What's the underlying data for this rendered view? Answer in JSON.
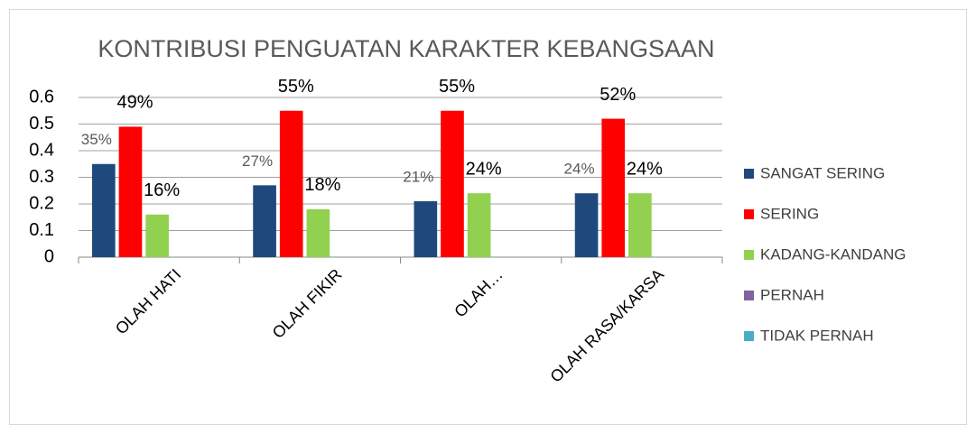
{
  "chart_data": {
    "type": "bar",
    "title": "KONTRIBUSI PENGUATAN KARAKTER KEBANGSAAN",
    "categories": [
      "OLAH HATI",
      "OLAH FIKIR",
      "OLAH…",
      "OLAH RASA/KARSA"
    ],
    "series": [
      {
        "name": "SANGAT SERING",
        "color": "#1f497d",
        "values": [
          0.35,
          0.27,
          0.21,
          0.24
        ],
        "value_labels": [
          "35%",
          "27%",
          "21%",
          "24%"
        ]
      },
      {
        "name": "SERING",
        "color": "#ff0000",
        "values": [
          0.49,
          0.55,
          0.55,
          0.52
        ],
        "value_labels": [
          "49%",
          "55%",
          "55%",
          "52%"
        ]
      },
      {
        "name": "KADANG-KANDANG",
        "color": "#92d050",
        "values": [
          0.16,
          0.18,
          0.24,
          0.24
        ],
        "value_labels": [
          "16%",
          "18%",
          "24%",
          "24%"
        ]
      },
      {
        "name": "PERNAH",
        "color": "#8064a2",
        "values": [
          null,
          null,
          null,
          null
        ]
      },
      {
        "name": "TIDAK PERNAH",
        "color": "#4bacc6",
        "values": [
          null,
          null,
          null,
          null
        ]
      }
    ],
    "ylim": [
      0,
      0.6
    ],
    "yticks": [
      0,
      0.1,
      0.2,
      0.3,
      0.4,
      0.5,
      0.6
    ],
    "grid": true,
    "legend": "right"
  }
}
